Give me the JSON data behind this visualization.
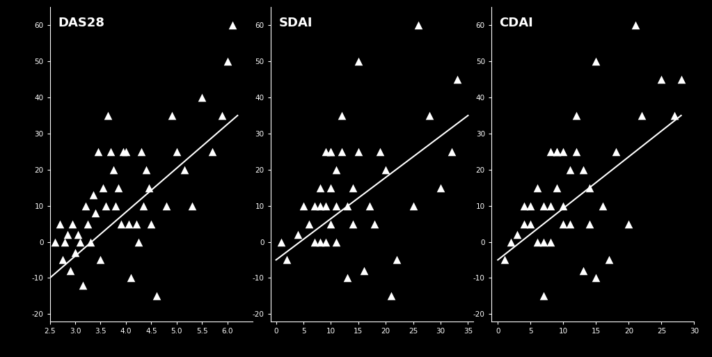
{
  "background_color": "#000000",
  "text_color": "#ffffff",
  "panels": [
    {
      "label": "DAS28",
      "xlim": [
        2.5,
        6.5
      ],
      "ylim": [
        -22,
        65
      ],
      "xticks": [
        2.5,
        3.0,
        3.5,
        4.0,
        4.5,
        5.0,
        5.5,
        6.0
      ],
      "yticks": [
        -20,
        -10,
        0,
        10,
        20,
        30,
        40,
        50,
        60
      ],
      "xticklabels": [
        "2.5",
        "3.0",
        "3.5",
        "4.0",
        "4.5",
        "5.0",
        "5.5",
        "6.0"
      ],
      "yticklabels": [
        "-20",
        "-10",
        "0",
        "10",
        "20",
        "30",
        "40",
        "50",
        "60"
      ],
      "scatter_x": [
        2.6,
        2.7,
        2.75,
        2.8,
        2.85,
        2.9,
        2.95,
        3.0,
        3.05,
        3.1,
        3.15,
        3.2,
        3.25,
        3.3,
        3.35,
        3.4,
        3.45,
        3.5,
        3.55,
        3.6,
        3.65,
        3.7,
        3.75,
        3.8,
        3.85,
        3.9,
        3.95,
        4.0,
        4.05,
        4.1,
        4.2,
        4.25,
        4.3,
        4.35,
        4.4,
        4.45,
        4.5,
        4.6,
        4.8,
        4.9,
        5.0,
        5.15,
        5.3,
        5.5,
        5.7,
        5.9,
        6.0,
        6.1
      ],
      "scatter_y": [
        0,
        5,
        -5,
        0,
        2,
        -8,
        5,
        -3,
        2,
        0,
        -12,
        10,
        5,
        0,
        13,
        8,
        25,
        -5,
        15,
        10,
        35,
        25,
        20,
        10,
        15,
        5,
        25,
        25,
        5,
        -10,
        5,
        0,
        25,
        10,
        20,
        15,
        5,
        -15,
        10,
        35,
        25,
        20,
        10,
        40,
        25,
        35,
        50,
        60
      ],
      "line_x": [
        2.5,
        6.2
      ],
      "line_y": [
        -10,
        35
      ]
    },
    {
      "label": "SDAI",
      "xlim": [
        -1,
        36
      ],
      "ylim": [
        -22,
        65
      ],
      "xticks": [
        0,
        5,
        10,
        15,
        20,
        25,
        30,
        35
      ],
      "yticks": [
        -20,
        -10,
        0,
        10,
        20,
        30,
        40,
        50,
        60
      ],
      "xticklabels": [
        "0",
        "5",
        "10",
        "15",
        "20",
        "25",
        "30",
        "35"
      ],
      "yticklabels": [
        "-20",
        "-10",
        "0",
        "10",
        "20",
        "30",
        "40",
        "50",
        "60"
      ],
      "scatter_x": [
        1,
        2,
        4,
        5,
        6,
        7,
        7,
        8,
        8,
        8,
        9,
        9,
        9,
        10,
        10,
        10,
        10,
        11,
        11,
        11,
        12,
        12,
        13,
        13,
        14,
        14,
        15,
        15,
        16,
        17,
        18,
        19,
        20,
        21,
        22,
        25,
        26,
        28,
        30,
        32,
        33
      ],
      "scatter_y": [
        0,
        -5,
        2,
        10,
        5,
        10,
        0,
        15,
        10,
        0,
        25,
        10,
        0,
        25,
        25,
        15,
        5,
        20,
        10,
        0,
        35,
        25,
        10,
        -10,
        15,
        5,
        50,
        25,
        -8,
        10,
        5,
        25,
        20,
        -15,
        -5,
        10,
        60,
        35,
        15,
        25,
        45
      ],
      "line_x": [
        0,
        35
      ],
      "line_y": [
        -5,
        35
      ]
    },
    {
      "label": "CDAI",
      "xlim": [
        -1,
        30
      ],
      "ylim": [
        -22,
        65
      ],
      "xticks": [
        0,
        5,
        10,
        15,
        20,
        25,
        30
      ],
      "yticks": [
        -20,
        -10,
        0,
        10,
        20,
        30,
        40,
        50,
        60
      ],
      "xticklabels": [
        "0",
        "5",
        "10",
        "15",
        "20",
        "25",
        "30"
      ],
      "yticklabels": [
        "-20",
        "-10",
        "0",
        "10",
        "20",
        "30",
        "40",
        "50",
        "60"
      ],
      "scatter_x": [
        1,
        2,
        3,
        4,
        4,
        5,
        5,
        6,
        6,
        7,
        7,
        7,
        8,
        8,
        8,
        9,
        9,
        9,
        10,
        10,
        10,
        11,
        11,
        12,
        12,
        13,
        13,
        14,
        14,
        15,
        15,
        16,
        17,
        18,
        20,
        21,
        22,
        25,
        27,
        28
      ],
      "scatter_y": [
        -5,
        0,
        2,
        10,
        5,
        5,
        10,
        0,
        15,
        10,
        0,
        -15,
        25,
        10,
        0,
        25,
        25,
        15,
        25,
        10,
        5,
        20,
        5,
        35,
        25,
        20,
        -8,
        15,
        5,
        50,
        -10,
        10,
        -5,
        25,
        5,
        60,
        35,
        45,
        35,
        45
      ],
      "line_x": [
        0,
        28
      ],
      "line_y": [
        -5,
        35
      ]
    }
  ]
}
